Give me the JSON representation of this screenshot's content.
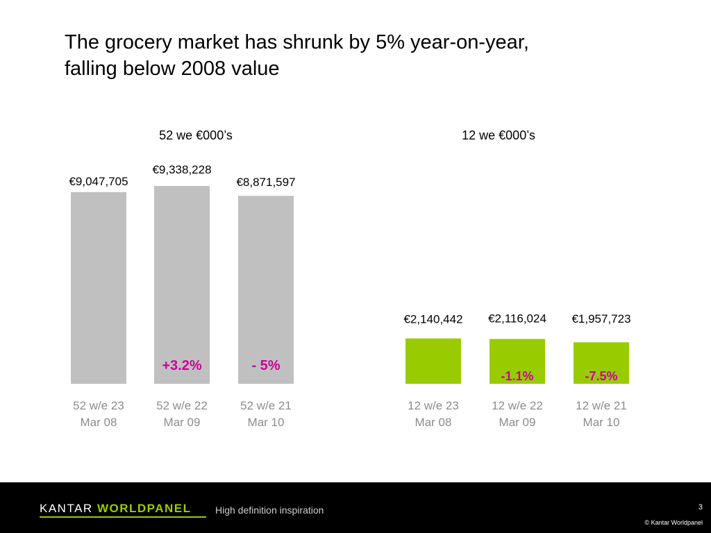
{
  "title_lines": [
    "The grocery market has shrunk by 5% year-on-year,",
    "falling below 2008 value"
  ],
  "chart_data": [
    {
      "type": "bar",
      "title": "52 we €000’s",
      "categories": [
        [
          "52 w/e 23",
          "Mar 08"
        ],
        [
          "52 w/e 22",
          "Mar 09"
        ],
        [
          "52 w/e 21",
          "Mar 10"
        ]
      ],
      "values": [
        9047705,
        9338228,
        8871597
      ],
      "value_labels": [
        "€9,047,705",
        "€9,338,228",
        "€8,871,597"
      ],
      "change_labels": [
        "",
        "+3.2%",
        "- 5%"
      ],
      "bar_color": "#c0c0c0",
      "change_color": "#cc0099",
      "ylim": [
        0,
        9500000
      ]
    },
    {
      "type": "bar",
      "title": "12 we €000’s",
      "categories": [
        [
          "12 w/e 23",
          "Mar 08"
        ],
        [
          "12 w/e 22",
          "Mar 09"
        ],
        [
          "12 w/e 21",
          "Mar 10"
        ]
      ],
      "values": [
        2140442,
        2116024,
        1957723
      ],
      "value_labels": [
        "€2,140,442",
        "€2,116,024",
        "€1,957,723"
      ],
      "change_labels": [
        "",
        "-1.1%",
        "-7.5%"
      ],
      "bar_color": "#99cc00",
      "change_color": "#cc0099",
      "ylim": [
        0,
        9500000
      ]
    }
  ],
  "footer": {
    "brand_prefix": "KANTAR",
    "brand_suffix": "WORLDPANEL",
    "tagline": "High definition inspiration",
    "page_number": "3",
    "copyright": "© Kantar Worldpanel",
    "brand_accent": "#9ccc00"
  }
}
